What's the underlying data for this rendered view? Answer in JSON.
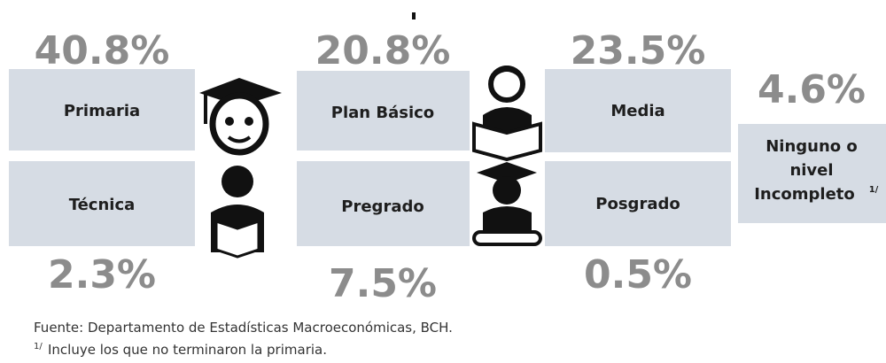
{
  "boxes": [
    {
      "label": "Primaria",
      "percent": "40.8%"
    },
    {
      "label": "Técnica",
      "percent": "2.3%"
    },
    {
      "label": "Plan Básico",
      "percent": "20.8%"
    },
    {
      "label": "Pregrado",
      "percent": "7.5%"
    },
    {
      "label": "Media",
      "percent": "23.5%"
    },
    {
      "label": "Posgrado",
      "percent": "0.5%"
    }
  ],
  "other": {
    "lines": [
      "Ninguno o",
      "nivel",
      "Incompleto"
    ],
    "note_mark": "1/",
    "percent": "4.6%"
  },
  "source": "Fuente: Departamento de Estadísticas Macroeconómicas, BCH.",
  "footnote": {
    "mark": "1/",
    "text": "Incluye los que no terminaron la primaria."
  }
}
